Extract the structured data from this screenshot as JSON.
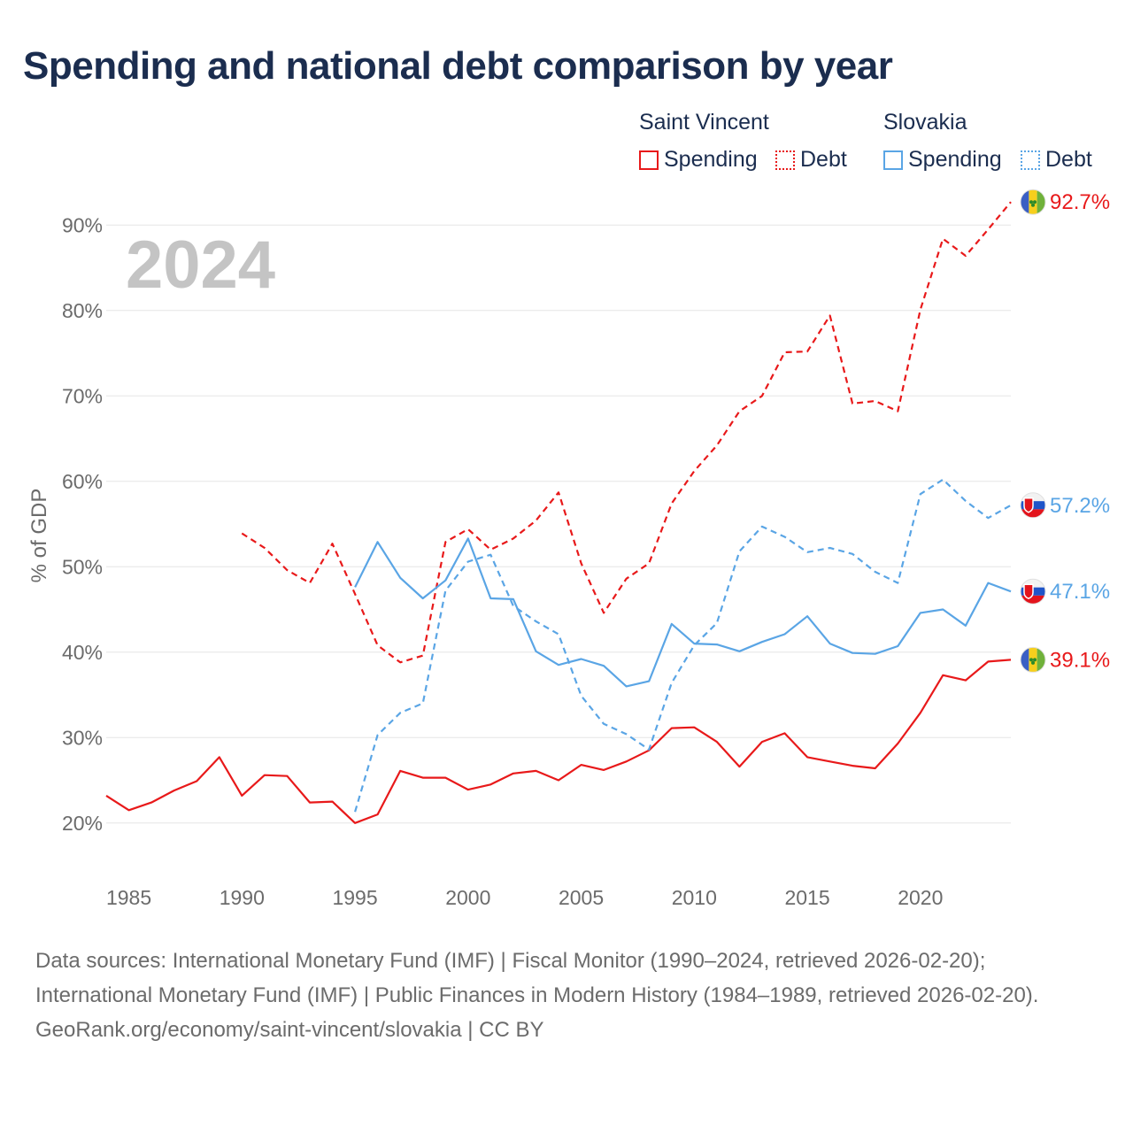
{
  "title": "Spending and national debt comparison by year",
  "legend": {
    "groups": [
      {
        "name": "Saint Vincent",
        "items": [
          {
            "label": "Spending",
            "style": "solid",
            "color": "#e8191a"
          },
          {
            "label": "Debt",
            "style": "dotted",
            "color": "#e8191a"
          }
        ]
      },
      {
        "name": "Slovakia",
        "items": [
          {
            "label": "Spending",
            "style": "solid",
            "color": "#5aa5e5"
          },
          {
            "label": "Debt",
            "style": "dotted",
            "color": "#5aa5e5"
          }
        ]
      }
    ]
  },
  "chart_data": {
    "type": "line",
    "year_watermark": "2024",
    "ylabel": "% of GDP",
    "xlabel": "",
    "xlim": [
      1984,
      2024
    ],
    "ylim": [
      15,
      95
    ],
    "x_ticks": [
      1985,
      1990,
      1995,
      2000,
      2005,
      2010,
      2015,
      2020
    ],
    "y_ticks": [
      20,
      30,
      40,
      50,
      60,
      70,
      80,
      90
    ],
    "y_tick_labels": [
      "20%",
      "30%",
      "40%",
      "50%",
      "60%",
      "70%",
      "80%",
      "90%"
    ],
    "grid": true,
    "series": [
      {
        "name": "Saint Vincent Spending",
        "country": "Saint Vincent",
        "metric": "Spending",
        "color": "#e8191a",
        "dash": "solid",
        "end_label": "39.1%",
        "flag": "saint-vincent",
        "x": [
          1984,
          1985,
          1986,
          1987,
          1988,
          1989,
          1990,
          1991,
          1992,
          1993,
          1994,
          1995,
          1996,
          1997,
          1998,
          1999,
          2000,
          2001,
          2002,
          2003,
          2004,
          2005,
          2006,
          2007,
          2008,
          2009,
          2010,
          2011,
          2012,
          2013,
          2014,
          2015,
          2016,
          2017,
          2018,
          2019,
          2020,
          2021,
          2022,
          2023,
          2024
        ],
        "values": [
          23.2,
          21.5,
          22.4,
          23.8,
          24.9,
          27.7,
          23.2,
          25.6,
          25.5,
          22.4,
          22.5,
          20.0,
          21.0,
          26.1,
          25.3,
          25.3,
          23.9,
          24.5,
          25.8,
          26.1,
          25.0,
          26.8,
          26.2,
          27.2,
          28.5,
          31.1,
          31.2,
          29.5,
          26.6,
          29.5,
          30.5,
          27.7,
          27.2,
          26.7,
          26.4,
          29.3,
          32.9,
          37.3,
          36.7,
          38.9,
          39.1
        ]
      },
      {
        "name": "Saint Vincent Debt",
        "country": "Saint Vincent",
        "metric": "Debt",
        "color": "#e8191a",
        "dash": "dashed",
        "end_label": "92.7%",
        "flag": "saint-vincent",
        "x": [
          1990,
          1991,
          1992,
          1993,
          1994,
          1995,
          1996,
          1997,
          1998,
          1999,
          2000,
          2001,
          2002,
          2003,
          2004,
          2005,
          2006,
          2007,
          2008,
          2009,
          2010,
          2011,
          2012,
          2013,
          2014,
          2015,
          2016,
          2017,
          2018,
          2019,
          2020,
          2021,
          2022,
          2023,
          2024
        ],
        "values": [
          53.9,
          52.2,
          49.6,
          48.1,
          52.7,
          46.8,
          40.8,
          38.8,
          39.6,
          52.9,
          54.4,
          52.0,
          53.3,
          55.4,
          58.7,
          50.4,
          44.6,
          48.6,
          50.4,
          57.4,
          61.2,
          64.2,
          68.2,
          70.0,
          75.1,
          75.2,
          79.4,
          69.1,
          69.4,
          68.2,
          80.1,
          88.4,
          86.4,
          89.5,
          92.7
        ]
      },
      {
        "name": "Slovakia Spending",
        "country": "Slovakia",
        "metric": "Spending",
        "color": "#5aa5e5",
        "dash": "solid",
        "end_label": "47.1%",
        "flag": "slovakia",
        "x": [
          1995,
          1996,
          1997,
          1998,
          1999,
          2000,
          2001,
          2002,
          2003,
          2004,
          2005,
          2006,
          2007,
          2008,
          2009,
          2010,
          2011,
          2012,
          2013,
          2014,
          2015,
          2016,
          2017,
          2018,
          2019,
          2020,
          2021,
          2022,
          2023,
          2024
        ],
        "values": [
          47.6,
          52.9,
          48.7,
          46.3,
          48.4,
          53.3,
          46.3,
          46.2,
          40.1,
          38.5,
          39.2,
          38.4,
          36.0,
          36.6,
          43.3,
          41.0,
          40.9,
          40.1,
          41.2,
          42.1,
          44.2,
          41.0,
          39.9,
          39.8,
          40.7,
          44.6,
          45.0,
          43.1,
          48.1,
          47.1
        ]
      },
      {
        "name": "Slovakia Debt",
        "country": "Slovakia",
        "metric": "Debt",
        "color": "#5aa5e5",
        "dash": "dashed",
        "end_label": "57.2%",
        "flag": "slovakia",
        "x": [
          1995,
          1996,
          1997,
          1998,
          1999,
          2000,
          2001,
          2002,
          2003,
          2004,
          2005,
          2006,
          2007,
          2008,
          2009,
          2010,
          2011,
          2012,
          2013,
          2014,
          2015,
          2016,
          2017,
          2018,
          2019,
          2020,
          2021,
          2022,
          2023,
          2024
        ],
        "values": [
          21.3,
          30.3,
          32.9,
          34.0,
          47.2,
          50.6,
          51.4,
          45.4,
          43.6,
          42.1,
          34.9,
          31.6,
          30.4,
          28.6,
          36.4,
          40.8,
          43.4,
          51.8,
          54.7,
          53.5,
          51.7,
          52.2,
          51.5,
          49.4,
          48.1,
          58.5,
          60.2,
          57.7,
          55.7,
          57.2
        ]
      }
    ]
  },
  "footer": {
    "sources": "Data sources: International Monetary Fund (IMF) | Fiscal Monitor (1990–2024, retrieved 2026-02-20); International Monetary Fund (IMF) | Public Finances in Modern History (1984–1989, retrieved 2026-02-20).",
    "credit": "GeoRank.org/economy/saint-vincent/slovakia | CC BY"
  }
}
